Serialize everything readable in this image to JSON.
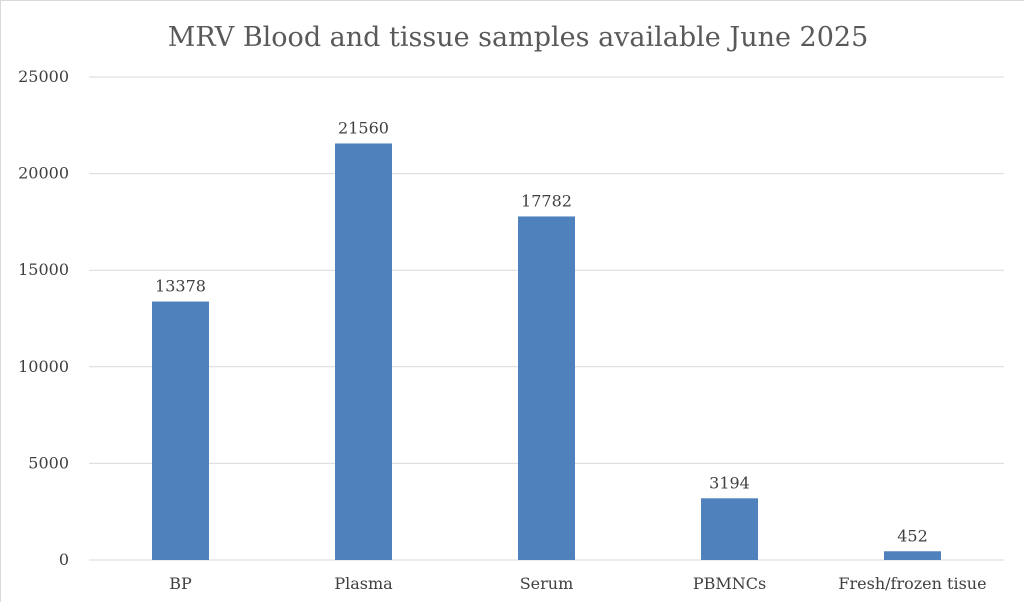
{
  "chart_data": {
    "type": "bar",
    "title": "MRV Blood and tissue samples available June 2025",
    "categories": [
      "BP",
      "Plasma",
      "Serum",
      "PBMNCs",
      "Fresh/frozen tisue"
    ],
    "values": [
      13378,
      21560,
      17782,
      3194,
      452
    ],
    "data_labels": [
      "13378",
      "21560",
      "17782",
      "3194",
      "452"
    ],
    "y_ticks": [
      0,
      5000,
      10000,
      15000,
      20000,
      25000
    ],
    "ylim": [
      0,
      25000
    ],
    "xlabel": "",
    "ylabel": "",
    "grid": true,
    "legend": "none",
    "bar_color": "#4f81bd",
    "grid_color": "#d9d9d9"
  }
}
